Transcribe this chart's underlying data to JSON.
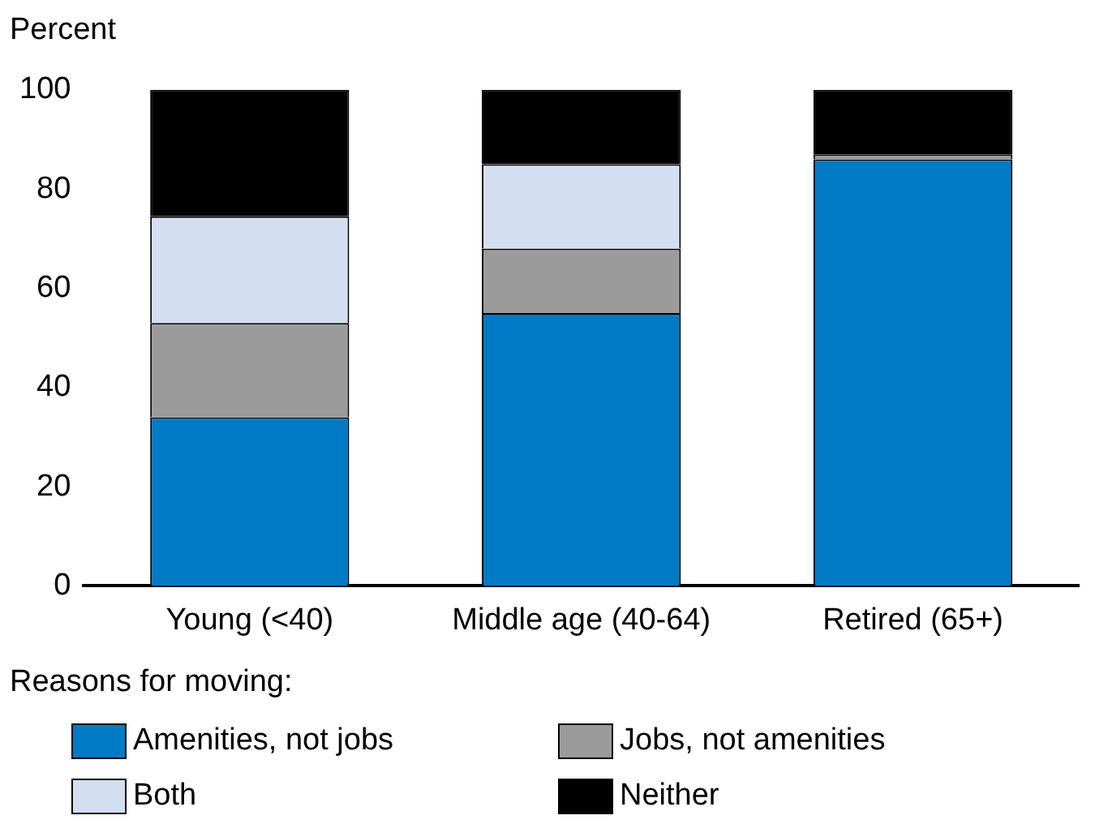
{
  "chart_data": {
    "type": "bar",
    "stacked": true,
    "ylabel": "Percent",
    "legend_title": "Reasons for moving:",
    "legend": "bottom left",
    "categories": [
      "Young (<40)",
      "Middle age (40-64)",
      "Retired (65+)"
    ],
    "series": [
      {
        "name": "Amenities, not jobs",
        "color": "#007ac4",
        "values": [
          34,
          55,
          86
        ]
      },
      {
        "name": "Jobs, not amenities",
        "color": "#9b9b9b",
        "values": [
          19,
          13,
          1
        ]
      },
      {
        "name": "Both",
        "color": "#d3dff1",
        "values": [
          21.5,
          17,
          0
        ]
      },
      {
        "name": "Neither",
        "color": "#000000",
        "values": [
          25.5,
          15,
          13
        ]
      }
    ],
    "ylim": [
      0,
      100
    ],
    "yticks": [
      0,
      20,
      40,
      60,
      80,
      100
    ],
    "grid": false
  }
}
